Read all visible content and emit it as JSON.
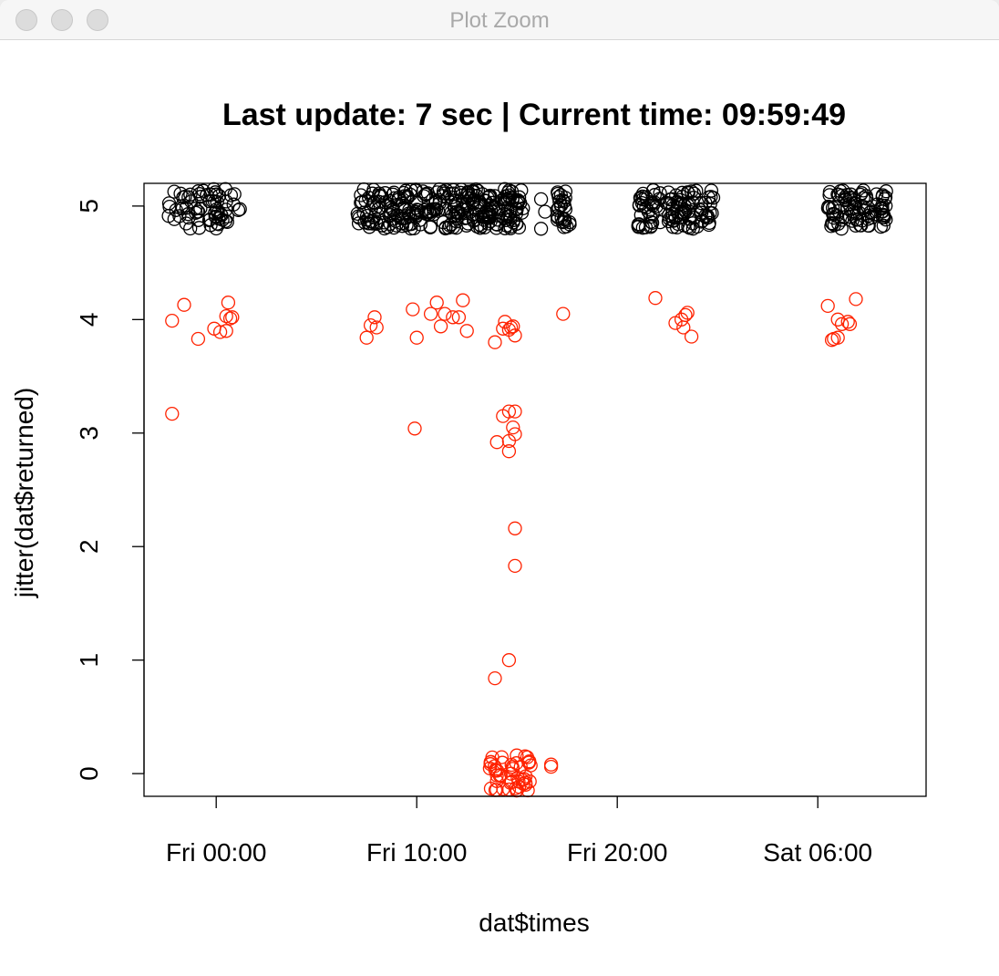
{
  "window": {
    "title": "Plot Zoom"
  },
  "chart_data": {
    "type": "scatter",
    "title": "Last update: 7 sec | Current time: 09:59:49",
    "xlabel": "dat$times",
    "ylabel": "jitter(dat$returned)",
    "x_ticks": [
      "Fri 00:00",
      "Fri 10:00",
      "Fri 20:00",
      "Sat 06:00"
    ],
    "x_tick_hours": [
      0,
      10,
      20,
      30
    ],
    "xlim_hours": [
      -3.6,
      35.4
    ],
    "y_ticks": [
      0,
      1,
      2,
      3,
      4,
      5
    ],
    "ylim": [
      -0.2,
      5.2
    ],
    "grid": false,
    "series": [
      {
        "color": "#000000",
        "clusters": [
          {
            "x_from": -2.4,
            "x_to": 1.2,
            "y_from": 4.8,
            "y_to": 5.15,
            "n": 70
          },
          {
            "x_from": 7.0,
            "x_to": 15.3,
            "y_from": 4.8,
            "y_to": 5.15,
            "n": 280
          },
          {
            "x_from": 17.0,
            "x_to": 17.7,
            "y_from": 4.8,
            "y_to": 5.15,
            "n": 28
          },
          {
            "x_from": 21.0,
            "x_to": 24.8,
            "y_from": 4.8,
            "y_to": 5.15,
            "n": 110
          },
          {
            "x_from": 30.5,
            "x_to": 33.5,
            "y_from": 4.8,
            "y_to": 5.15,
            "n": 90
          }
        ],
        "points": [
          [
            16.2,
            5.06
          ],
          [
            16.4,
            4.95
          ],
          [
            16.2,
            4.8
          ],
          [
            15.3,
            4.98
          ]
        ]
      },
      {
        "color": "#ff2200",
        "clusters": [
          {
            "x_from": 13.6,
            "x_to": 15.8,
            "y_from": -0.15,
            "y_to": 0.17,
            "n": 50
          }
        ],
        "points": [
          [
            -2.2,
            3.99
          ],
          [
            -1.6,
            4.13
          ],
          [
            -0.9,
            3.83
          ],
          [
            -0.1,
            3.92
          ],
          [
            0.2,
            3.89
          ],
          [
            0.5,
            4.03
          ],
          [
            0.6,
            4.15
          ],
          [
            0.7,
            4.01
          ],
          [
            0.5,
            3.9
          ],
          [
            0.8,
            4.02
          ],
          [
            -2.2,
            3.17
          ],
          [
            7.5,
            3.84
          ],
          [
            7.7,
            3.95
          ],
          [
            7.9,
            4.02
          ],
          [
            8.0,
            3.93
          ],
          [
            9.8,
            4.09
          ],
          [
            10.0,
            3.84
          ],
          [
            10.7,
            4.05
          ],
          [
            11.0,
            4.15
          ],
          [
            11.2,
            3.94
          ],
          [
            11.4,
            4.05
          ],
          [
            11.8,
            4.02
          ],
          [
            12.1,
            4.02
          ],
          [
            12.3,
            4.17
          ],
          [
            12.5,
            3.9
          ],
          [
            9.9,
            3.04
          ],
          [
            13.9,
            3.8
          ],
          [
            14.3,
            3.92
          ],
          [
            14.4,
            3.98
          ],
          [
            14.7,
            3.93
          ],
          [
            14.8,
            3.94
          ],
          [
            14.9,
            3.86
          ],
          [
            14.6,
            3.91
          ],
          [
            14.0,
            2.92
          ],
          [
            14.3,
            3.15
          ],
          [
            14.6,
            3.19
          ],
          [
            14.9,
            3.19
          ],
          [
            14.8,
            3.05
          ],
          [
            14.6,
            2.93
          ],
          [
            14.9,
            2.99
          ],
          [
            14.6,
            2.84
          ],
          [
            14.9,
            2.16
          ],
          [
            14.9,
            1.83
          ],
          [
            14.6,
            1.0
          ],
          [
            13.9,
            0.84
          ],
          [
            16.7,
            0.06
          ],
          [
            16.7,
            0.08
          ],
          [
            17.3,
            4.05
          ],
          [
            21.9,
            4.19
          ],
          [
            22.9,
            3.97
          ],
          [
            23.2,
            4.0
          ],
          [
            23.4,
            4.04
          ],
          [
            23.5,
            4.06
          ],
          [
            23.3,
            3.93
          ],
          [
            23.7,
            3.85
          ],
          [
            30.5,
            4.12
          ],
          [
            30.7,
            3.82
          ],
          [
            30.8,
            3.83
          ],
          [
            31.0,
            3.84
          ],
          [
            31.0,
            4.0
          ],
          [
            31.2,
            3.96
          ],
          [
            31.5,
            3.98
          ],
          [
            31.6,
            3.96
          ],
          [
            31.9,
            4.18
          ]
        ]
      }
    ]
  }
}
